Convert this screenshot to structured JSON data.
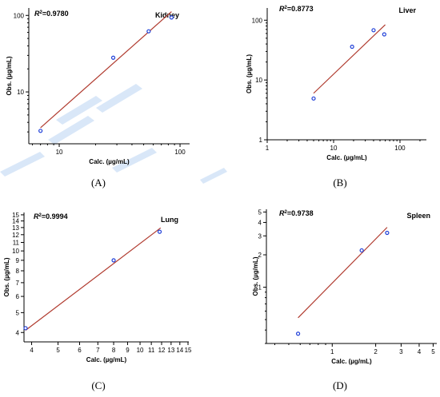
{
  "colors": {
    "fit_line": "#b03a2e",
    "point_stroke": "#1f3fd8",
    "axis": "#000000"
  },
  "chart_data": [
    {
      "panel": "(A)",
      "type": "scatter",
      "label": "Kidney",
      "r2_value": "=0.9780",
      "xlabel": "Calc. (µg/mL)",
      "ylabel": "Obs. (µg/mL)",
      "xscale": "log",
      "yscale": "log",
      "xlim": [
        5.6,
        120
      ],
      "ylim": [
        2.1,
        125
      ],
      "xticks": [
        10,
        100
      ],
      "yticks": [
        10,
        100
      ],
      "fit_line": {
        "x": [
          7,
          85
        ],
        "y": [
          3.4,
          112
        ]
      },
      "points": [
        {
          "x": 7.0,
          "y": 3.1
        },
        {
          "x": 28,
          "y": 28
        },
        {
          "x": 55,
          "y": 62
        },
        {
          "x": 85,
          "y": 94
        }
      ],
      "grid": false,
      "legend": "none"
    },
    {
      "panel": "(B)",
      "type": "scatter",
      "label": "Liver",
      "r2_value": "=0.8773",
      "xlabel": "Calc. (µg/mL)",
      "ylabel": "Obs. (µg/mL)",
      "xscale": "log",
      "yscale": "log",
      "xlim": [
        1,
        250
      ],
      "ylim": [
        1,
        160
      ],
      "xticks": [
        1,
        10,
        100
      ],
      "yticks": [
        1,
        10,
        100
      ],
      "fit_line": {
        "x": [
          5,
          60
        ],
        "y": [
          6,
          84
        ]
      },
      "points": [
        {
          "x": 5,
          "y": 4.9
        },
        {
          "x": 19,
          "y": 36
        },
        {
          "x": 40,
          "y": 68
        },
        {
          "x": 58,
          "y": 58
        }
      ],
      "grid": false,
      "legend": "none"
    },
    {
      "panel": "(C)",
      "type": "scatter",
      "label": "Lung",
      "r2_value": "=0.9994",
      "xlabel": "Calc. (µg/mL)",
      "ylabel": "Obs. (µg/mL)",
      "xscale": "log",
      "yscale": "log",
      "xlim": [
        3.75,
        15.1
      ],
      "ylim": [
        3.6,
        15.4
      ],
      "xticks": [
        4,
        5,
        6,
        7,
        8,
        9,
        10,
        11,
        12,
        13,
        14,
        15
      ],
      "yticks": [
        4,
        5,
        6,
        7,
        8,
        9,
        10,
        11,
        12,
        13,
        14,
        15
      ],
      "fit_line": {
        "x": [
          3.8,
          11.9
        ],
        "y": [
          4.1,
          12.95
        ]
      },
      "points": [
        {
          "x": 3.8,
          "y": 4.2
        },
        {
          "x": 8.0,
          "y": 9.0
        },
        {
          "x": 11.8,
          "y": 12.4
        }
      ],
      "grid": false,
      "legend": "none"
    },
    {
      "panel": "(D)",
      "type": "scatter",
      "label": "Spleen",
      "r2_value": "=0.9738",
      "xlabel": "Calc. (µg/mL)",
      "ylabel": "Obs. (µg/mL)",
      "xscale": "log",
      "yscale": "log",
      "xlim": [
        0.35,
        5.3
      ],
      "ylim": [
        0.3,
        5.3
      ],
      "xticks": [
        1,
        2,
        3,
        4,
        5
      ],
      "yticks": [
        1,
        2,
        3,
        4,
        5
      ],
      "fit_line": {
        "x": [
          0.58,
          2.4
        ],
        "y": [
          0.52,
          3.6
        ]
      },
      "points": [
        {
          "x": 0.58,
          "y": 0.37
        },
        {
          "x": 1.6,
          "y": 2.2
        },
        {
          "x": 2.4,
          "y": 3.2
        }
      ],
      "grid": false,
      "legend": "none"
    }
  ]
}
